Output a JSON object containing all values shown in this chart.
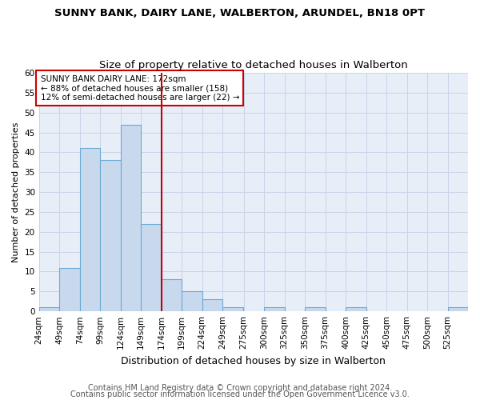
{
  "title": "SUNNY BANK, DAIRY LANE, WALBERTON, ARUNDEL, BN18 0PT",
  "subtitle": "Size of property relative to detached houses in Walberton",
  "xlabel": "Distribution of detached houses by size in Walberton",
  "ylabel": "Number of detached properties",
  "bar_values": [
    1,
    11,
    41,
    38,
    47,
    22,
    8,
    5,
    3,
    1,
    0,
    1,
    0,
    1,
    0,
    1,
    0,
    0,
    0,
    0,
    1
  ],
  "bin_starts": [
    24,
    49,
    74,
    99,
    124,
    149,
    174,
    199,
    224,
    249,
    275,
    300,
    325,
    350,
    375,
    400,
    425,
    450,
    475,
    500,
    525
  ],
  "bin_width": 25,
  "tick_labels": [
    "24sqm",
    "49sqm",
    "74sqm",
    "99sqm",
    "124sqm",
    "149sqm",
    "174sqm",
    "199sqm",
    "224sqm",
    "249sqm",
    "275sqm",
    "300sqm",
    "325sqm",
    "350sqm",
    "375sqm",
    "400sqm",
    "425sqm",
    "450sqm",
    "475sqm",
    "500sqm",
    "525sqm"
  ],
  "bar_color": "#c8d9ee",
  "bar_edge_color": "#6aaad4",
  "vline_x": 174,
  "vline_color": "#cc0000",
  "annotation_text": "SUNNY BANK DAIRY LANE: 172sqm\n← 88% of detached houses are smaller (158)\n12% of semi-detached houses are larger (22) →",
  "annotation_box_color": "#ffffff",
  "annotation_box_edge": "#cc0000",
  "ylim": [
    0,
    60
  ],
  "yticks": [
    0,
    5,
    10,
    15,
    20,
    25,
    30,
    35,
    40,
    45,
    50,
    55,
    60
  ],
  "xlim_start": 24,
  "xlim_end": 550,
  "grid_color": "#c8d4e8",
  "background_color": "#e8eef8",
  "footer_line1": "Contains HM Land Registry data © Crown copyright and database right 2024.",
  "footer_line2": "Contains public sector information licensed under the Open Government Licence v3.0.",
  "title_fontsize": 9.5,
  "subtitle_fontsize": 9.5,
  "xlabel_fontsize": 9,
  "ylabel_fontsize": 8,
  "tick_fontsize": 7.5,
  "footer_fontsize": 7,
  "annot_fontsize": 7.5
}
